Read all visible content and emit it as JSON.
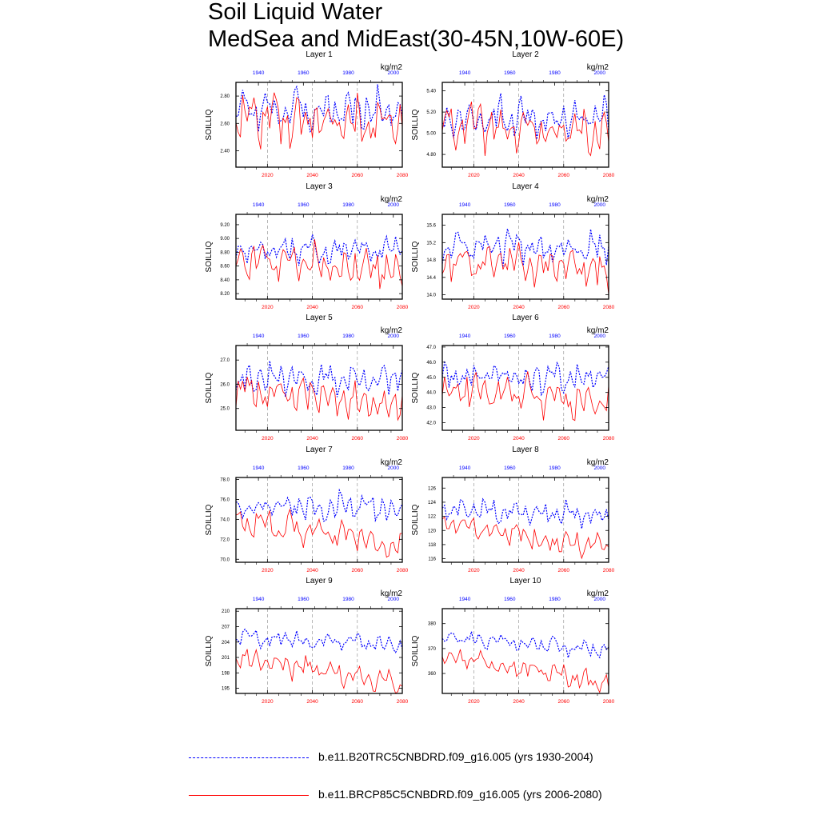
{
  "title_line1": "Soil Liquid Water",
  "title_line2": "MedSea and MidEast(30-45N,10W-60E)",
  "legend": [
    {
      "label": "b.e11.B20TRC5CNBDRD.f09_g16.005 (yrs 1930-2004)",
      "color": "#0000ff",
      "style": "dashed"
    },
    {
      "label": "b.e11.BRCP85C5CNBDRD.f09_g16.005 (yrs 2006-2080)",
      "color": "#ff0000",
      "style": "solid"
    }
  ],
  "chart_data": [
    {
      "type": "line",
      "title": "Layer 1",
      "units": "kg/m2",
      "ylabel": "SOILLIQ",
      "ylim": [
        2.28,
        2.9
      ],
      "yticks": [
        2.4,
        2.6,
        2.8
      ],
      "yfmt": 2,
      "top_axis": {
        "range": [
          1930,
          2004
        ],
        "ticks": [
          1940,
          1960,
          1980,
          2000
        ],
        "color": "#0000ff"
      },
      "bottom_axis": {
        "range": [
          2006,
          2080
        ],
        "ticks": [
          2020,
          2040,
          2060,
          2080
        ],
        "color": "#ff0000"
      },
      "series": [
        {
          "name": "b.e11.B20TRC5CNBDRD.f09_g16.005 (yrs 1930-2004)",
          "color": "#0000ff",
          "style": "dashed",
          "mean": 2.7,
          "amp": 0.13,
          "trend": 0
        },
        {
          "name": "b.e11.BRCP85C5CNBDRD.f09_g16.005 (yrs 2006-2080)",
          "color": "#ff0000",
          "style": "solid",
          "mean": 2.66,
          "amp": 0.16,
          "trend": -0.08
        }
      ]
    },
    {
      "type": "line",
      "title": "Layer 2",
      "units": "kg/m2",
      "ylabel": "SOILLIQ",
      "ylim": [
        4.68,
        5.48
      ],
      "yticks": [
        4.8,
        5.0,
        5.2,
        5.4
      ],
      "yfmt": 2,
      "top_axis": {
        "range": [
          1930,
          2004
        ],
        "ticks": [
          1940,
          1960,
          1980,
          2000
        ],
        "color": "#0000ff"
      },
      "bottom_axis": {
        "range": [
          2006,
          2080
        ],
        "ticks": [
          2020,
          2040,
          2060,
          2080
        ],
        "color": "#ff0000"
      },
      "series": [
        {
          "name": "b.e11.B20TRC5CNBDRD.f09_g16.005 (yrs 1930-2004)",
          "color": "#0000ff",
          "style": "dashed",
          "mean": 5.15,
          "amp": 0.16,
          "trend": 0
        },
        {
          "name": "b.e11.BRCP85C5CNBDRD.f09_g16.005 (yrs 2006-2080)",
          "color": "#ff0000",
          "style": "solid",
          "mean": 5.08,
          "amp": 0.19,
          "trend": -0.1
        }
      ]
    },
    {
      "type": "line",
      "title": "Layer 3",
      "units": "kg/m2",
      "ylabel": "SOILLIQ",
      "ylim": [
        8.12,
        9.35
      ],
      "yticks": [
        8.2,
        8.4,
        8.6,
        8.8,
        9.0,
        9.2
      ],
      "yfmt": 2,
      "top_axis": {
        "range": [
          1930,
          2004
        ],
        "ticks": [
          1940,
          1960,
          1980,
          2000
        ],
        "color": "#0000ff"
      },
      "bottom_axis": {
        "range": [
          2006,
          2080
        ],
        "ticks": [
          2020,
          2040,
          2060,
          2080
        ],
        "color": "#ff0000"
      },
      "series": [
        {
          "name": "b.e11.B20TRC5CNBDRD.f09_g16.005 (yrs 1930-2004)",
          "color": "#0000ff",
          "style": "dashed",
          "mean": 8.85,
          "amp": 0.2,
          "trend": 0
        },
        {
          "name": "b.e11.BRCP85C5CNBDRD.f09_g16.005 (yrs 2006-2080)",
          "color": "#ff0000",
          "style": "solid",
          "mean": 8.7,
          "amp": 0.25,
          "trend": -0.15
        }
      ]
    },
    {
      "type": "line",
      "title": "Layer 4",
      "units": "kg/m2",
      "ylabel": "SOILLIQ",
      "ylim": [
        13.9,
        15.85
      ],
      "yticks": [
        14.0,
        14.4,
        14.8,
        15.2,
        15.6
      ],
      "yfmt": 1,
      "top_axis": {
        "range": [
          1930,
          2004
        ],
        "ticks": [
          1940,
          1960,
          1980,
          2000
        ],
        "color": "#0000ff"
      },
      "bottom_axis": {
        "range": [
          2006,
          2080
        ],
        "ticks": [
          2020,
          2040,
          2060,
          2080
        ],
        "color": "#ff0000"
      },
      "series": [
        {
          "name": "b.e11.B20TRC5CNBDRD.f09_g16.005 (yrs 1930-2004)",
          "color": "#0000ff",
          "style": "dashed",
          "mean": 15.1,
          "amp": 0.35,
          "trend": 0
        },
        {
          "name": "b.e11.BRCP85C5CNBDRD.f09_g16.005 (yrs 2006-2080)",
          "color": "#ff0000",
          "style": "solid",
          "mean": 14.85,
          "amp": 0.42,
          "trend": -0.3
        }
      ]
    },
    {
      "type": "line",
      "title": "Layer 5",
      "units": "kg/m2",
      "ylabel": "SOILLIQ",
      "ylim": [
        24.1,
        27.6
      ],
      "yticks": [
        25.0,
        26.0,
        27.0
      ],
      "yfmt": 1,
      "top_axis": {
        "range": [
          1930,
          2004
        ],
        "ticks": [
          1940,
          1960,
          1980,
          2000
        ],
        "color": "#0000ff"
      },
      "bottom_axis": {
        "range": [
          2006,
          2080
        ],
        "ticks": [
          2020,
          2040,
          2060,
          2080
        ],
        "color": "#ff0000"
      },
      "series": [
        {
          "name": "b.e11.B20TRC5CNBDRD.f09_g16.005 (yrs 1930-2004)",
          "color": "#0000ff",
          "style": "dashed",
          "mean": 26.2,
          "amp": 0.55,
          "trend": 0
        },
        {
          "name": "b.e11.BRCP85C5CNBDRD.f09_g16.005 (yrs 2006-2080)",
          "color": "#ff0000",
          "style": "solid",
          "mean": 25.8,
          "amp": 0.7,
          "trend": -0.6
        }
      ]
    },
    {
      "type": "line",
      "title": "Layer 6",
      "units": "kg/m2",
      "ylabel": "SOILLIQ",
      "ylim": [
        41.5,
        47.1
      ],
      "yticks": [
        42.0,
        43.0,
        44.0,
        45.0,
        46.0,
        47.0
      ],
      "yfmt": 1,
      "top_axis": {
        "range": [
          1930,
          2004
        ],
        "ticks": [
          1940,
          1960,
          1980,
          2000
        ],
        "color": "#0000ff"
      },
      "bottom_axis": {
        "range": [
          2006,
          2080
        ],
        "ticks": [
          2020,
          2040,
          2060,
          2080
        ],
        "color": "#ff0000"
      },
      "series": [
        {
          "name": "b.e11.B20TRC5CNBDRD.f09_g16.005 (yrs 1930-2004)",
          "color": "#0000ff",
          "style": "dashed",
          "mean": 45.0,
          "amp": 0.85,
          "trend": 0
        },
        {
          "name": "b.e11.BRCP85C5CNBDRD.f09_g16.005 (yrs 2006-2080)",
          "color": "#ff0000",
          "style": "solid",
          "mean": 44.3,
          "amp": 1.1,
          "trend": -1.0
        }
      ]
    },
    {
      "type": "line",
      "title": "Layer 7",
      "units": "kg/m2",
      "ylabel": "SOILLIQ",
      "ylim": [
        69.7,
        78.2
      ],
      "yticks": [
        70.0,
        72.0,
        74.0,
        76.0,
        78.0
      ],
      "yfmt": 1,
      "top_axis": {
        "range": [
          1930,
          2004
        ],
        "ticks": [
          1940,
          1960,
          1980,
          2000
        ],
        "color": "#0000ff"
      },
      "bottom_axis": {
        "range": [
          2006,
          2080
        ],
        "ticks": [
          2020,
          2040,
          2060,
          2080
        ],
        "color": "#ff0000"
      },
      "series": [
        {
          "name": "b.e11.B20TRC5CNBDRD.f09_g16.005 (yrs 1930-2004)",
          "color": "#0000ff",
          "style": "dashed",
          "mean": 75.2,
          "amp": 1.2,
          "trend": 0
        },
        {
          "name": "b.e11.BRCP85C5CNBDRD.f09_g16.005 (yrs 2006-2080)",
          "color": "#ff0000",
          "style": "solid",
          "mean": 74.0,
          "amp": 1.3,
          "trend": -2.5
        }
      ]
    },
    {
      "type": "line",
      "title": "Layer 8",
      "units": "kg/m2",
      "ylabel": "SOILLIQ",
      "ylim": [
        115.5,
        127.5
      ],
      "yticks": [
        116,
        118,
        120,
        122,
        124,
        126
      ],
      "yfmt": 0,
      "top_axis": {
        "range": [
          1930,
          2004
        ],
        "ticks": [
          1940,
          1960,
          1980,
          2000
        ],
        "color": "#0000ff"
      },
      "bottom_axis": {
        "range": [
          2006,
          2080
        ],
        "ticks": [
          2020,
          2040,
          2060,
          2080
        ],
        "color": "#ff0000"
      },
      "series": [
        {
          "name": "b.e11.B20TRC5CNBDRD.f09_g16.005 (yrs 1930-2004)",
          "color": "#0000ff",
          "style": "dashed",
          "mean": 123.0,
          "amp": 1.4,
          "trend": -1.0
        },
        {
          "name": "b.e11.BRCP85C5CNBDRD.f09_g16.005 (yrs 2006-2080)",
          "color": "#ff0000",
          "style": "solid",
          "mean": 121.0,
          "amp": 1.5,
          "trend": -3.5
        }
      ]
    },
    {
      "type": "line",
      "title": "Layer 9",
      "units": "kg/m2",
      "ylabel": "SOILLIQ",
      "ylim": [
        194,
        210.5
      ],
      "yticks": [
        195,
        198,
        201,
        204,
        207,
        210
      ],
      "yfmt": 0,
      "top_axis": {
        "range": [
          1930,
          2004
        ],
        "ticks": [
          1940,
          1960,
          1980,
          2000
        ],
        "color": "#0000ff"
      },
      "bottom_axis": {
        "range": [
          2006,
          2080
        ],
        "ticks": [
          2020,
          2040,
          2060,
          2080
        ],
        "color": "#ff0000"
      },
      "series": [
        {
          "name": "b.e11.B20TRC5CNBDRD.f09_g16.005 (yrs 1930-2004)",
          "color": "#0000ff",
          "style": "dashed",
          "mean": 205.0,
          "amp": 1.5,
          "trend": -1.5
        },
        {
          "name": "b.e11.BRCP85C5CNBDRD.f09_g16.005 (yrs 2006-2080)",
          "color": "#ff0000",
          "style": "solid",
          "mean": 201.0,
          "amp": 2.0,
          "trend": -5.0
        }
      ]
    },
    {
      "type": "line",
      "title": "Layer 10",
      "units": "kg/m2",
      "ylabel": "SOILLIQ",
      "ylim": [
        352,
        386
      ],
      "yticks": [
        360,
        370,
        380
      ],
      "yfmt": 0,
      "top_axis": {
        "range": [
          1930,
          2004
        ],
        "ticks": [
          1940,
          1960,
          1980,
          2000
        ],
        "color": "#0000ff"
      },
      "bottom_axis": {
        "range": [
          2006,
          2080
        ],
        "ticks": [
          2020,
          2040,
          2060,
          2080
        ],
        "color": "#ff0000"
      },
      "series": [
        {
          "name": "b.e11.B20TRC5CNBDRD.f09_g16.005 (yrs 1930-2004)",
          "color": "#0000ff",
          "style": "dashed",
          "mean": 375.0,
          "amp": 3.0,
          "trend": -6.0
        },
        {
          "name": "b.e11.BRCP85C5CNBDRD.f09_g16.005 (yrs 2006-2080)",
          "color": "#ff0000",
          "style": "solid",
          "mean": 368.0,
          "amp": 3.5,
          "trend": -12.0
        }
      ]
    }
  ]
}
